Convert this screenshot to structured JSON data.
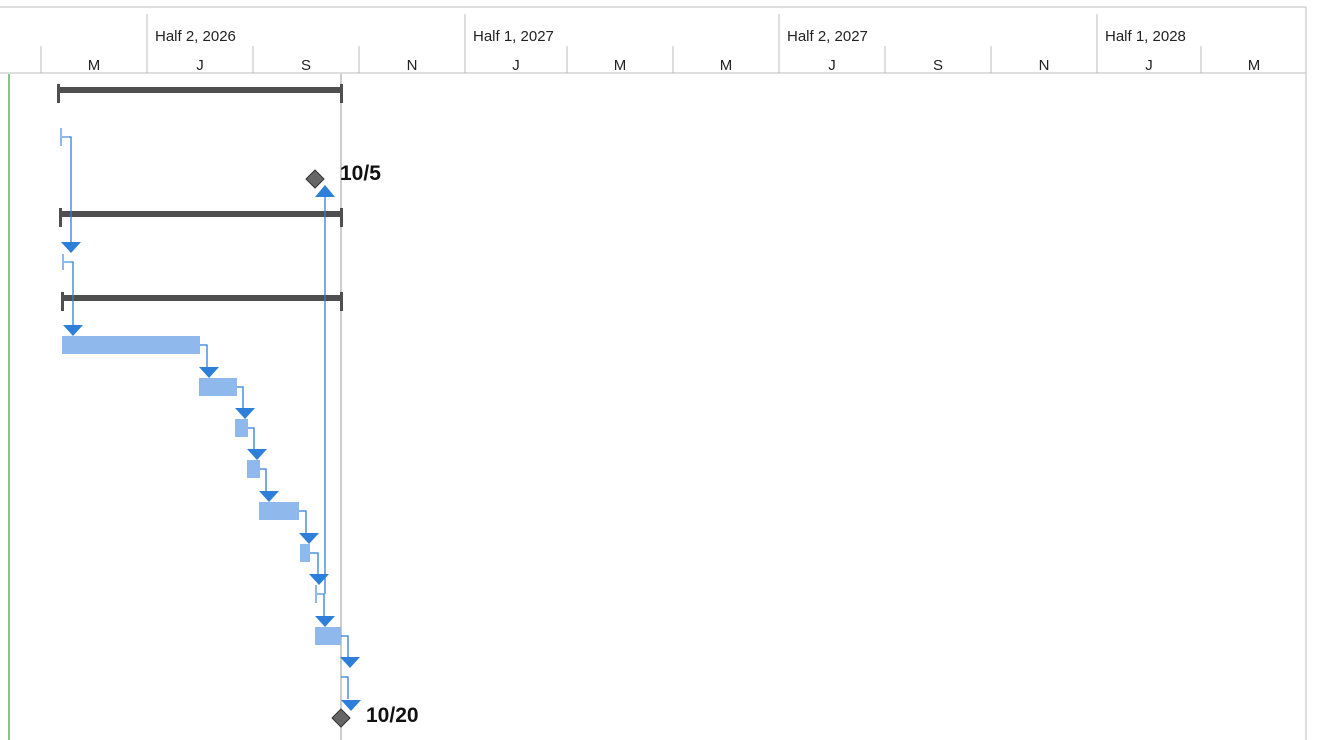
{
  "timescale": {
    "halves": [
      {
        "label": "Half 2, 2026"
      },
      {
        "label": "Half 1, 2027"
      },
      {
        "label": "Half 2, 2027"
      },
      {
        "label": "Half 1, 2028"
      }
    ],
    "periods": [
      {
        "label": "M"
      },
      {
        "label": "J"
      },
      {
        "label": "S"
      },
      {
        "label": "N"
      },
      {
        "label": "J"
      },
      {
        "label": "M"
      },
      {
        "label": "M"
      },
      {
        "label": "J"
      },
      {
        "label": "S"
      },
      {
        "label": "N"
      },
      {
        "label": "J"
      },
      {
        "label": "M"
      }
    ]
  },
  "milestones": [
    {
      "date_label": "10/5"
    },
    {
      "date_label": "10/20"
    }
  ],
  "colors": {
    "link": "#2e7fd9",
    "task_bar": "#8fb9ec",
    "summary_bar": "#4f4f4f",
    "milestone": "#666666",
    "left_border": "#8cc08c"
  }
}
